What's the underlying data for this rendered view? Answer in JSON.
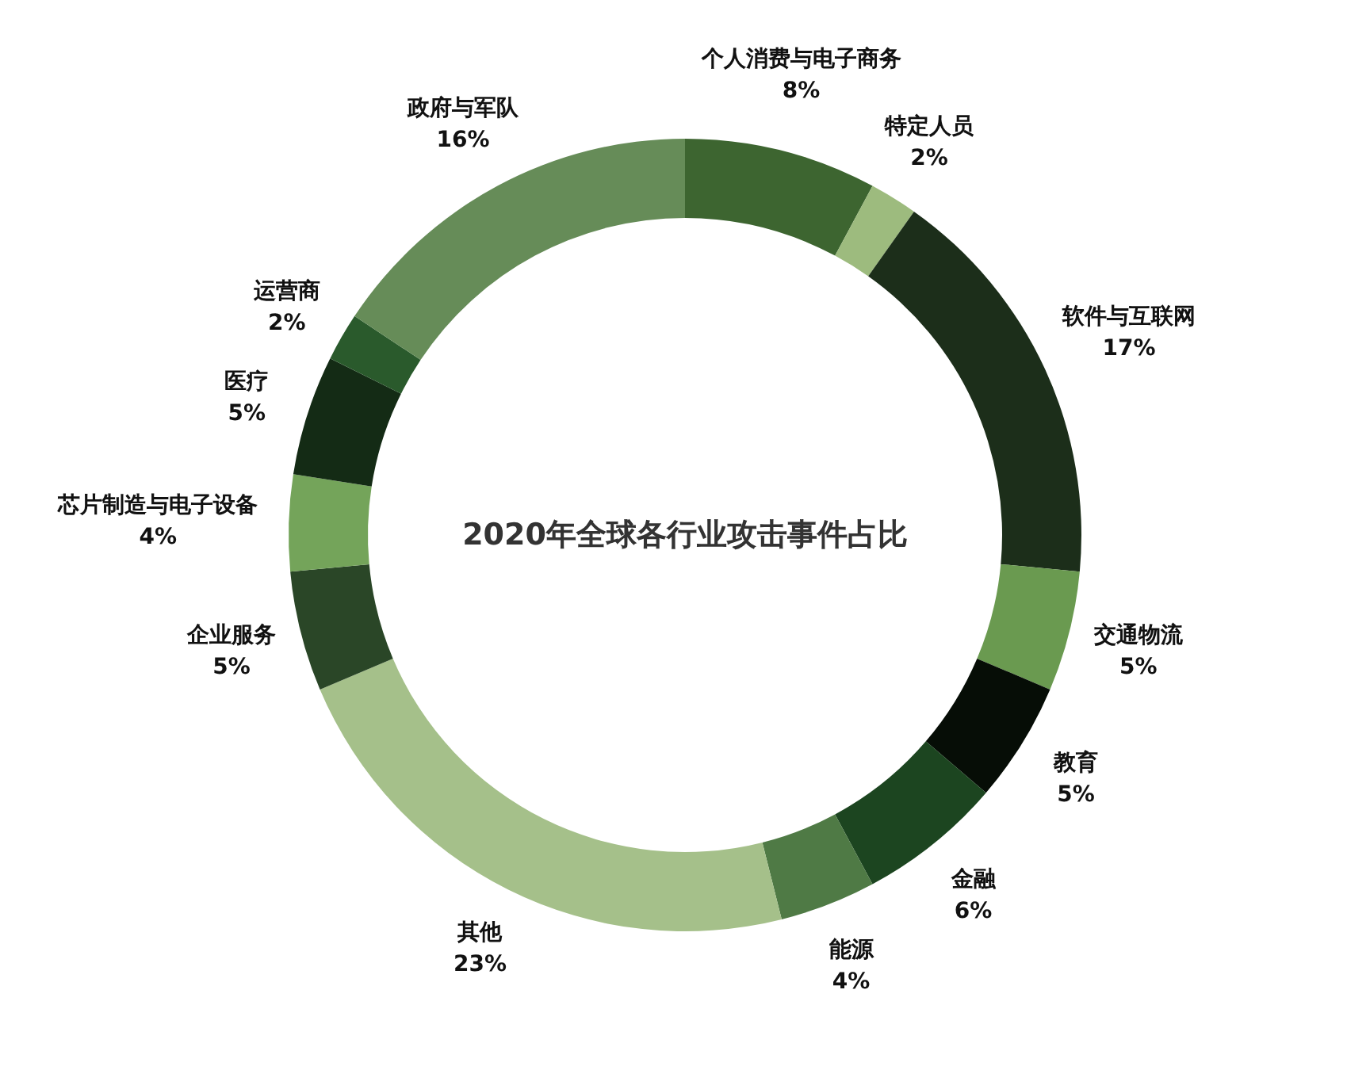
{
  "chart_data": {
    "type": "donut",
    "title": "2020年全球各行业攻击事件占比",
    "categories": [
      "个人消费与电子商务",
      "特定人员",
      "软件与互联网",
      "交通物流",
      "教育",
      "金融",
      "能源",
      "其他",
      "企业服务",
      "芯片制造与电子设备",
      "医疗",
      "运营商",
      "政府与军队"
    ],
    "values": [
      8,
      2,
      17,
      5,
      5,
      6,
      4,
      23,
      5,
      4,
      5,
      2,
      16
    ],
    "value_labels": [
      "8%",
      "2%",
      "17%",
      "5%",
      "5%",
      "6%",
      "4%",
      "23%",
      "5%",
      "4%",
      "5%",
      "2%",
      "16%"
    ],
    "colors": [
      "#3d6530",
      "#9dbb7e",
      "#1c2e1a",
      "#6a9a50",
      "#060d06",
      "#1c4520",
      "#4f7a45",
      "#a5c08a",
      "#2a4627",
      "#74a45a",
      "#142b15",
      "#2a5a2c",
      "#668c58"
    ]
  }
}
